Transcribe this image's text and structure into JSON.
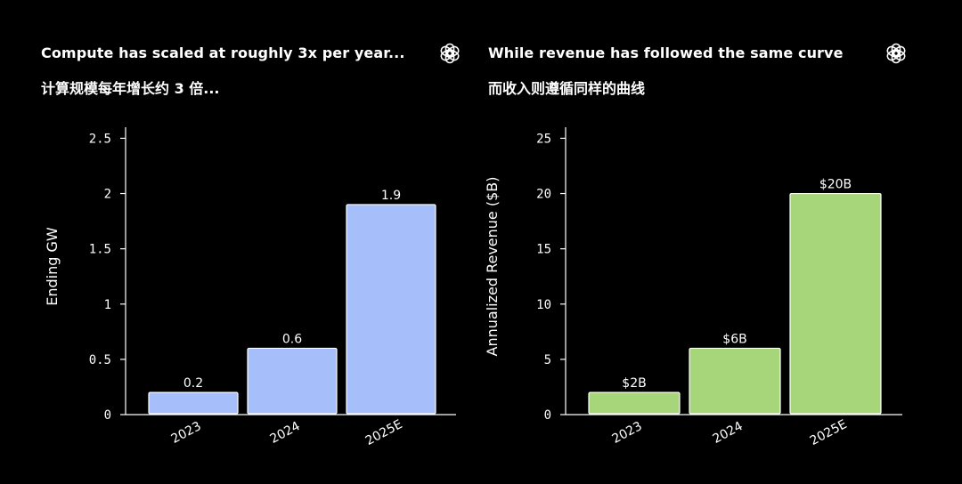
{
  "chart_data": [
    {
      "type": "bar",
      "title": "Compute has scaled at roughly 3x per year...",
      "subtitle": "计算规模每年增长约 3 倍...",
      "xlabel": "",
      "ylabel": "Ending GW",
      "categories": [
        "2023",
        "2024",
        "2025E"
      ],
      "values": [
        0.2,
        0.6,
        1.9
      ],
      "data_labels": [
        "0.2",
        "0.6",
        "1.9"
      ],
      "ylim": [
        0,
        2.6
      ],
      "yticks": [
        0,
        0.5,
        1,
        1.5,
        2,
        2.5
      ],
      "ytick_labels": [
        "0",
        "0.5",
        "1",
        "1.5",
        "2",
        "2.5"
      ],
      "bar_color": "#A6BEFA",
      "grid": false
    },
    {
      "type": "bar",
      "title": "While revenue has followed the same curve",
      "subtitle": "而收入则遵循同样的曲线",
      "xlabel": "",
      "ylabel": "Annualized Revenue ($B)",
      "categories": [
        "2023",
        "2024",
        "2025E"
      ],
      "values": [
        2,
        6,
        20
      ],
      "data_labels": [
        "$2B",
        "$6B",
        "$20B"
      ],
      "ylim": [
        0,
        26
      ],
      "yticks": [
        0,
        5,
        10,
        15,
        20,
        25
      ],
      "ytick_labels": [
        "0",
        "5",
        "10",
        "15",
        "20",
        "25"
      ],
      "bar_color": "#A7D57A",
      "grid": false
    }
  ],
  "icons": [
    "openai-logo-icon",
    "openai-logo-icon"
  ]
}
